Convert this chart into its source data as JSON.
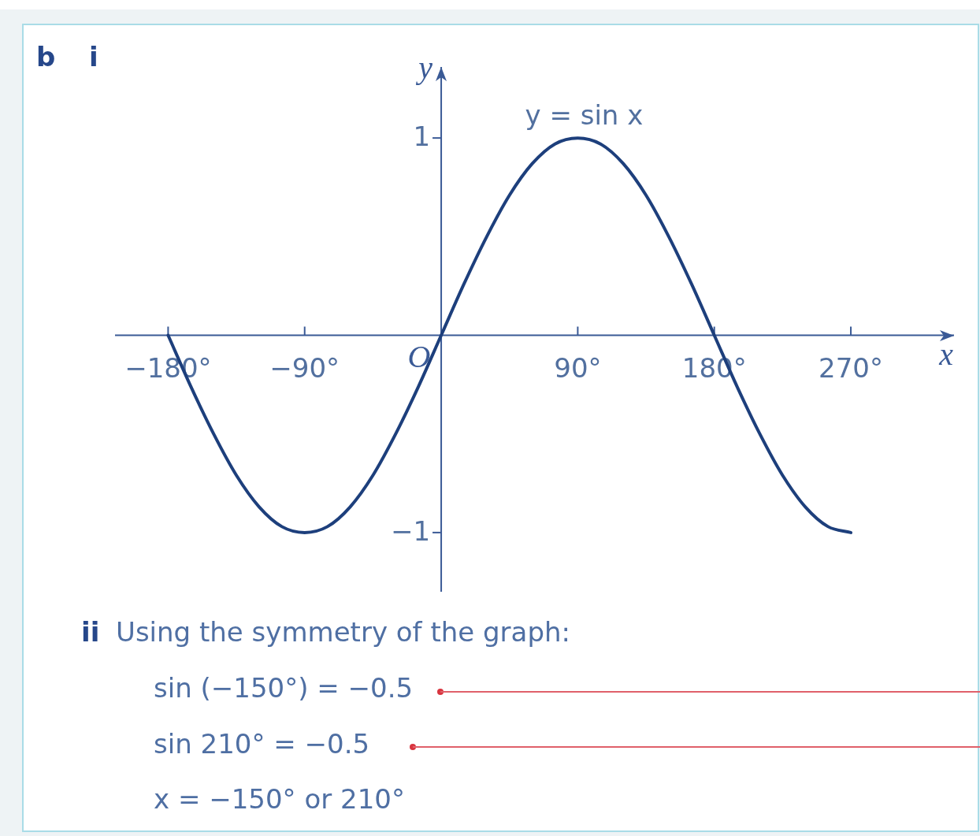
{
  "chart_data": {
    "type": "line",
    "x": [
      -180,
      -165,
      -150,
      -135,
      -120,
      -105,
      -90,
      -75,
      -60,
      -45,
      -30,
      -15,
      0,
      15,
      30,
      45,
      60,
      75,
      90,
      105,
      120,
      135,
      150,
      165,
      180,
      195,
      210,
      225,
      240,
      255,
      270
    ],
    "series": [
      {
        "name": "y = sin x",
        "color": "#1d3f7c",
        "values": [
          0,
          -0.26,
          -0.5,
          -0.71,
          -0.87,
          -0.97,
          -1,
          -0.97,
          -0.87,
          -0.71,
          -0.5,
          -0.26,
          0,
          0.26,
          0.5,
          0.71,
          0.87,
          0.97,
          1,
          0.97,
          0.87,
          0.71,
          0.5,
          0.26,
          0,
          -0.26,
          -0.5,
          -0.71,
          -0.87,
          -0.97,
          -1
        ]
      }
    ],
    "xlim": [
      -215,
      338
    ],
    "ylim": [
      -1.3,
      1.36
    ],
    "xticks": [
      {
        "value": -180,
        "label": "−180°"
      },
      {
        "value": -90,
        "label": "−90°"
      },
      {
        "value": 90,
        "label": "90°"
      },
      {
        "value": 180,
        "label": "180°"
      },
      {
        "value": 270,
        "label": "270°"
      }
    ],
    "yticks": [
      {
        "value": -1,
        "label": "−1"
      },
      1
    ],
    "xlabel": "x",
    "ylabel": "y",
    "marker": "none",
    "line_style": "solid",
    "annotations": [
      "b",
      "i",
      "ii",
      "Using the symmetry of the graph:",
      "sin (−150°) = −0.5",
      "sin 210° = −0.5",
      "x = −150° or 210°",
      {
        "text": "O",
        "x": 0,
        "y": 0
      }
    ]
  }
}
